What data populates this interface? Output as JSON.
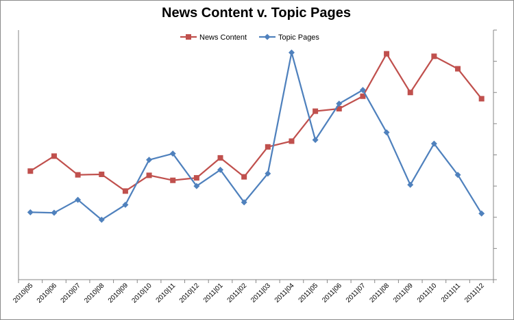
{
  "chart_data": {
    "type": "line",
    "title": "News Content v. Topic Pages",
    "categories": [
      "2010|05",
      "2010|06",
      "2010|07",
      "2010|08",
      "2010|09",
      "2010|10",
      "2010|11",
      "2010|12",
      "2011|01",
      "2011|02",
      "2011|03",
      "2011|04",
      "2011|05",
      "2011|06",
      "2011|07",
      "2011|08",
      "2011|09",
      "2011|10",
      "2011|11",
      "2011|12"
    ],
    "series": [
      {
        "name": "News Content",
        "color": "#c0504d",
        "marker": "square",
        "values": [
          43.5,
          49.5,
          42.0,
          42.2,
          35.5,
          41.8,
          39.8,
          40.8,
          48.8,
          41.2,
          53.2,
          55.5,
          67.5,
          68.5,
          73.5,
          90.5,
          75.0,
          89.5,
          84.5,
          72.5
        ]
      },
      {
        "name": "Topic Pages",
        "color": "#4f81bd",
        "marker": "diamond",
        "values": [
          27.0,
          26.8,
          32.0,
          24.0,
          30.0,
          48.0,
          50.5,
          37.5,
          44.0,
          31.0,
          42.5,
          91.0,
          56.0,
          70.5,
          76.0,
          59.0,
          38.0,
          54.5,
          42.0,
          26.5
        ]
      }
    ],
    "ylim": [
      0,
      100
    ],
    "y_gridlines": false,
    "y_axis_position": "right",
    "y_tick_labels_visible": false,
    "legend_position": "top"
  }
}
